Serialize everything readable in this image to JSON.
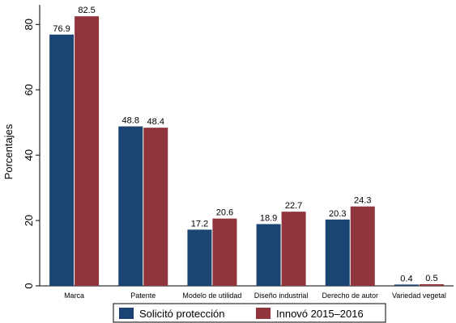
{
  "chart_data": {
    "type": "bar",
    "categories": [
      "Marca",
      "Patente",
      "Modelo de utilidad",
      "Diseño industrial",
      "Derecho de autor",
      "Variedad vegetal"
    ],
    "series": [
      {
        "name": "Solicitó protección",
        "color": "#1a4572",
        "values": [
          76.9,
          48.8,
          17.2,
          18.9,
          20.3,
          0.4
        ],
        "labels": [
          "76.9",
          "48.8",
          "17.2",
          "18.9",
          "20.3",
          "0.4"
        ]
      },
      {
        "name": "Innovó 2015–2016",
        "color": "#90353b",
        "values": [
          82.5,
          48.4,
          20.6,
          22.7,
          24.3,
          0.5
        ],
        "labels": [
          "82.5",
          "48.4",
          "20.6",
          "22.7",
          "24.3",
          "0.5"
        ]
      }
    ],
    "ylabel": "Porcentajes",
    "xlabel": "",
    "ylim": [
      0,
      86
    ],
    "yticks": [
      0,
      20,
      40,
      60,
      80
    ],
    "ytick_labels": [
      "0",
      "20",
      "40",
      "60",
      "80"
    ],
    "grid": false,
    "legend_position": "bottom"
  }
}
